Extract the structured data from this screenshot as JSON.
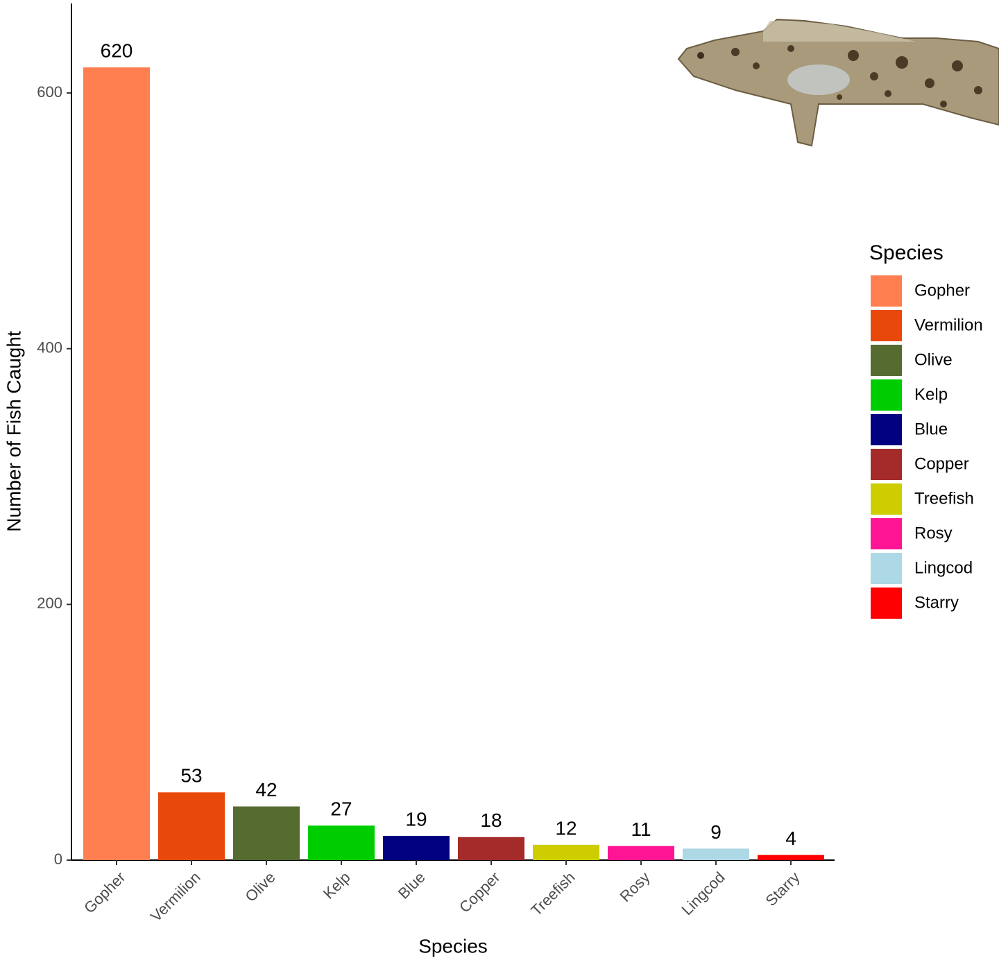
{
  "chart_data": {
    "type": "bar",
    "x_label": "Species",
    "y_label": "Number of Fish Caught",
    "categories": [
      "Gopher",
      "Vermilion",
      "Olive",
      "Kelp",
      "Blue",
      "Copper",
      "Treefish",
      "Rosy",
      "Lingcod",
      "Starry"
    ],
    "values": [
      620,
      53,
      42,
      27,
      19,
      18,
      12,
      11,
      9,
      4
    ],
    "colors": [
      "#ff7f50",
      "#e8480a",
      "#556b2f",
      "#00cd00",
      "#000080",
      "#a52a2a",
      "#cdcd00",
      "#ff1493",
      "#add8e6",
      "#ff0000"
    ],
    "legend_title": "Species",
    "legend": "right",
    "ylim": [
      0,
      670
    ],
    "yticks": [
      0,
      200,
      400,
      600
    ],
    "grid": false
  }
}
